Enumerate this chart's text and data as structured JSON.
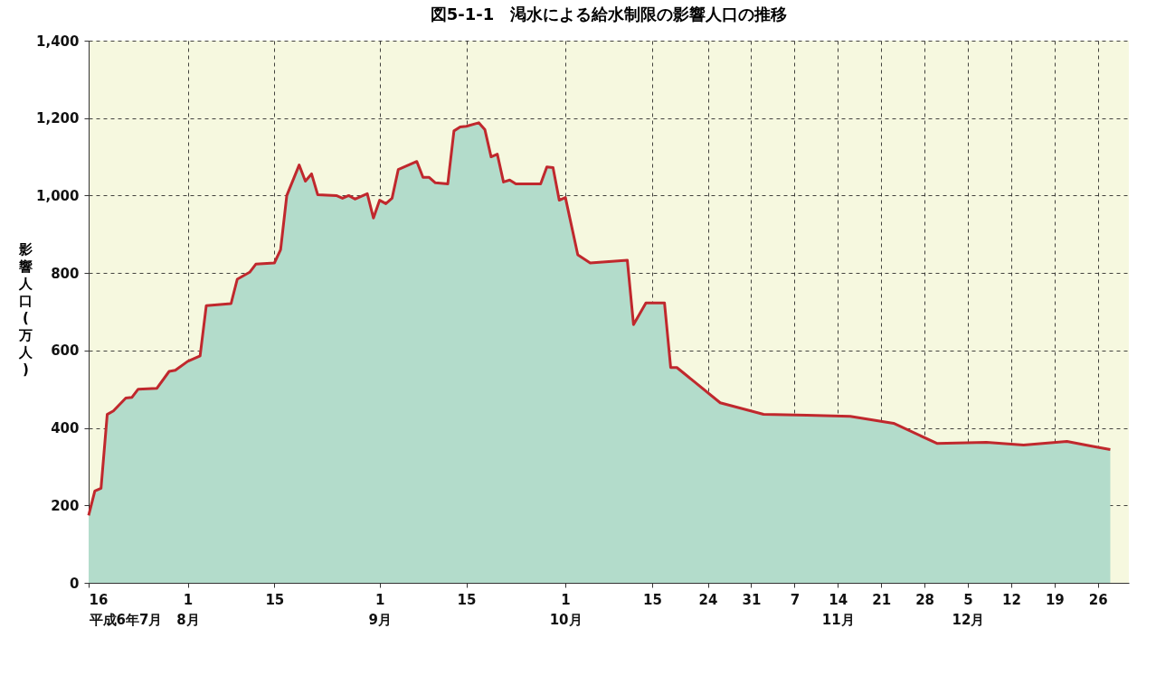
{
  "chart_data": {
    "type": "area",
    "title": "図5-1-1　渇水による給水制限の影響人口の推移",
    "ylabel": "影響人口(万人)",
    "x": [
      "--07-16",
      "--07-17",
      "--07-18",
      "--07-19",
      "--07-20",
      "--07-22",
      "--07-23",
      "--07-24",
      "--07-27",
      "--07-29",
      "--07-30",
      "--08-01",
      "--08-03",
      "--08-04",
      "--08-08",
      "--08-09",
      "--08-11",
      "--08-12",
      "--08-15",
      "--08-16",
      "--08-17",
      "--08-19",
      "--08-20",
      "--08-21",
      "--08-22",
      "--08-25",
      "--08-26",
      "--08-27",
      "--08-28",
      "--08-30",
      "--08-31",
      "--09-01",
      "--09-02",
      "--09-03",
      "--09-04",
      "--09-07",
      "--09-08",
      "--09-09",
      "--09-10",
      "--09-12",
      "--09-13",
      "--09-14",
      "--09-15",
      "--09-17",
      "--09-18",
      "--09-19",
      "--09-20",
      "--09-21",
      "--09-22",
      "--09-23",
      "--09-27",
      "--09-28",
      "--09-29",
      "--09-30",
      "--10-01",
      "--10-03",
      "--10-05",
      "--10-11",
      "--10-12",
      "--10-14",
      "--10-17",
      "--10-18",
      "--10-19",
      "--10-26",
      "--11-02",
      "--11-09",
      "--11-16",
      "--11-23",
      "--11-30",
      "--12-08",
      "--12-14",
      "--12-21",
      "--12-25",
      "--12-28"
    ],
    "series": [
      {
        "color": "#b3dccb",
        "values": [
          174,
          237,
          244,
          435,
          444,
          477,
          479,
          500,
          502,
          546,
          549,
          572,
          586,
          716,
          721,
          784,
          802,
          823,
          826,
          860,
          1000,
          1079,
          1037,
          1056,
          1002,
          1000,
          993,
          1000,
          991,
          1005,
          942,
          988,
          979,
          993,
          1067,
          1088,
          1047,
          1047,
          1033,
          1030,
          1167,
          1177,
          1179,
          1188,
          1170,
          1100,
          1107,
          1035,
          1040,
          1030,
          1030,
          1074,
          1072,
          988,
          995,
          847,
          826,
          833,
          667,
          723,
          723,
          556,
          556,
          465,
          435,
          433,
          430,
          412,
          360,
          363,
          356,
          365,
          353,
          344
        ]
      },
      {
        "type": "line",
        "color": "#c0282d",
        "values": [
          174,
          237,
          244,
          435,
          444,
          477,
          479,
          500,
          502,
          546,
          549,
          572,
          586,
          716,
          721,
          784,
          802,
          823,
          826,
          860,
          1000,
          1079,
          1037,
          1056,
          1002,
          1000,
          993,
          1000,
          991,
          1005,
          942,
          988,
          979,
          993,
          1067,
          1088,
          1047,
          1047,
          1033,
          1030,
          1167,
          1177,
          1179,
          1188,
          1170,
          1100,
          1107,
          1035,
          1040,
          1030,
          1030,
          1074,
          1072,
          988,
          995,
          847,
          826,
          833,
          667,
          723,
          723,
          556,
          556,
          465,
          435,
          433,
          430,
          412,
          360,
          363,
          356,
          365,
          353,
          344
        ]
      }
    ],
    "xlim": [
      "--07-16",
      "--12-31"
    ],
    "xticks": [
      {
        "value": "--07-16",
        "label": "16\n平成6年7月"
      },
      {
        "value": "--08-01",
        "label": "1\n8月"
      },
      {
        "value": "--08-15",
        "label": "15"
      },
      {
        "value": "--09-01",
        "label": "1\n9月"
      },
      {
        "value": "--09-15",
        "label": "15"
      },
      {
        "value": "--10-01",
        "label": "1\n10月"
      },
      {
        "value": "--10-15",
        "label": "15"
      },
      {
        "value": "--10-24",
        "label": "24"
      },
      {
        "value": "--10-31",
        "label": "31"
      },
      {
        "value": "--11-07",
        "label": "7"
      },
      {
        "value": "--11-14",
        "label": "14\n11月"
      },
      {
        "value": "--11-21",
        "label": "21"
      },
      {
        "value": "--11-28",
        "label": "28"
      },
      {
        "value": "--12-05",
        "label": "5\n12月"
      },
      {
        "value": "--12-12",
        "label": "12"
      },
      {
        "value": "--12-19",
        "label": "19"
      },
      {
        "value": "--12-26",
        "label": "26"
      }
    ],
    "ylim": [
      0,
      1400
    ],
    "yticks": [
      0,
      200,
      400,
      600,
      800,
      {
        "value": 1000,
        "label": "1,000"
      },
      {
        "value": 1200,
        "label": "1,200"
      },
      {
        "value": 1400,
        "label": "1,400"
      }
    ],
    "grid": true
  }
}
